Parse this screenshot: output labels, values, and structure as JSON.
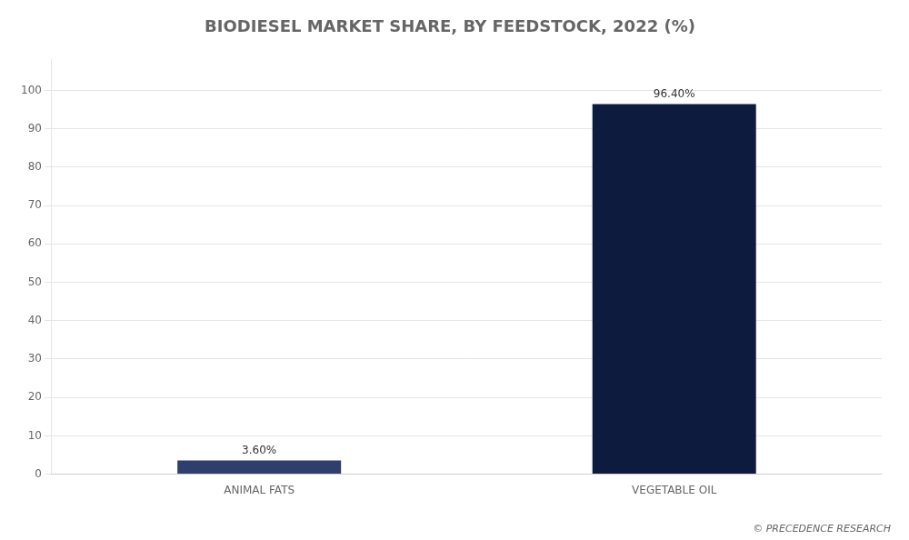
{
  "chart_data": {
    "type": "bar",
    "title": "BIODIESEL MARKET SHARE, BY FEEDSTOCK, 2022 (%)",
    "categories": [
      "ANIMAL FATS",
      "VEGETABLE OIL"
    ],
    "values": [
      3.6,
      96.4
    ],
    "value_labels": [
      "3.60%",
      "96.40%"
    ],
    "data_labels": true,
    "colors": [
      "#2e3f6e",
      "#0d1b3e"
    ],
    "ylim": [
      0,
      108
    ],
    "yticks": [
      0,
      10,
      20,
      30,
      40,
      50,
      60,
      70,
      80,
      90,
      100
    ],
    "grid": true,
    "annotations": [
      "© PRECEDENCE RESEARCH"
    ]
  }
}
